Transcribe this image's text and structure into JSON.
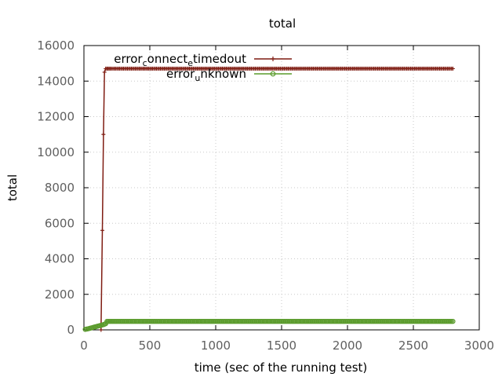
{
  "chart_data": {
    "type": "line",
    "title": "total",
    "xlabel": "time (sec of the running test)",
    "ylabel": "total",
    "xlim": [
      0,
      3000
    ],
    "ylim": [
      0,
      16000
    ],
    "x_ticks": [
      0,
      500,
      1000,
      1500,
      2000,
      2500,
      3000
    ],
    "y_ticks": [
      0,
      2000,
      4000,
      6000,
      8000,
      10000,
      12000,
      14000,
      16000
    ],
    "grid": true,
    "legend_position": "top",
    "series": [
      {
        "name": "error_connect_etimedout",
        "legend_parts": [
          "error",
          "c",
          "onnect",
          "e",
          "timedout"
        ],
        "color": "#7f1c12",
        "marker": "plus",
        "points": [
          [
            130,
            0
          ],
          [
            140,
            5600
          ],
          [
            148,
            11000
          ],
          [
            156,
            14500
          ],
          [
            165,
            14700
          ],
          [
            200,
            14700
          ],
          [
            500,
            14700
          ],
          [
            1000,
            14700
          ],
          [
            1500,
            14700
          ],
          [
            2000,
            14700
          ],
          [
            2500,
            14700
          ],
          [
            2800,
            14700
          ]
        ]
      },
      {
        "name": "error_unknown",
        "legend_parts": [
          "error",
          "u",
          "nknown"
        ],
        "color": "#5a9b2c",
        "marker": "circle",
        "points": [
          [
            10,
            30
          ],
          [
            30,
            60
          ],
          [
            50,
            100
          ],
          [
            70,
            140
          ],
          [
            90,
            180
          ],
          [
            110,
            220
          ],
          [
            130,
            260
          ],
          [
            150,
            300
          ],
          [
            165,
            350
          ],
          [
            175,
            480
          ],
          [
            200,
            480
          ],
          [
            500,
            480
          ],
          [
            1000,
            480
          ],
          [
            1500,
            480
          ],
          [
            2000,
            480
          ],
          [
            2500,
            480
          ],
          [
            2800,
            480
          ]
        ]
      }
    ]
  }
}
